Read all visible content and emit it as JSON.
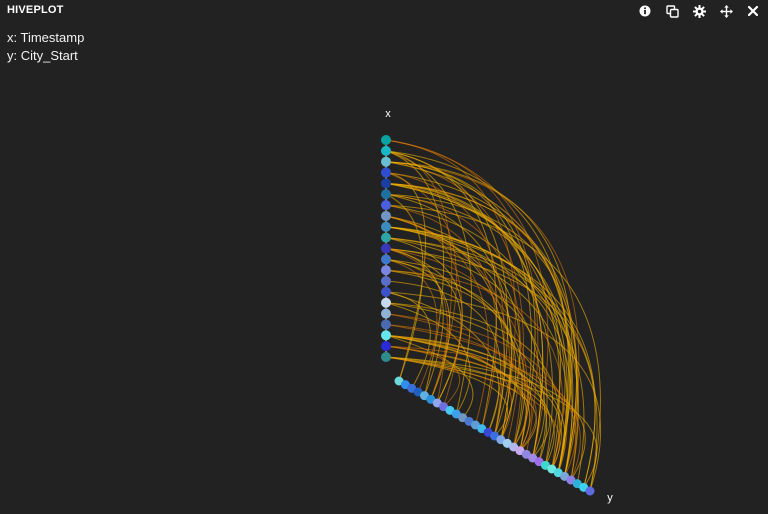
{
  "panel": {
    "title": "HIVEPLOT"
  },
  "toolbar": {
    "icons": [
      "info-icon",
      "copy-icon",
      "gear-icon",
      "move-icon",
      "close-icon"
    ]
  },
  "encoding": {
    "x_line": "x: Timestamp",
    "y_line": "y: City_Start"
  },
  "colors": {
    "background": "#222222",
    "edge": "#f0b000",
    "edge_dark": "#e07a00"
  },
  "chart_data": {
    "type": "hiveplot",
    "axes": [
      {
        "name": "x",
        "label": "x"
      },
      {
        "name": "y",
        "label": "y"
      }
    ],
    "x_nodes": [
      "#0aa2a2",
      "#19b6c6",
      "#6bbcd0",
      "#2f4dd0",
      "#1b3fa0",
      "#1f6fa0",
      "#4a5ee0",
      "#6f96c4",
      "#3b8bbf",
      "#2ea5a5",
      "#3a38b8",
      "#3f78c8",
      "#7a86e0",
      "#5a6ec8",
      "#3b52c8",
      "#c8d8ee",
      "#8fb2d6",
      "#4a6bb0",
      "#66e6f0",
      "#2a2ad8",
      "#2f8a8a"
    ],
    "y_nodes": [
      "#6fd8d8",
      "#2f8ef0",
      "#3a6ed8",
      "#1f5fbf",
      "#5fb0e0",
      "#2a90d8",
      "#8fa6ef",
      "#6f6fe0",
      "#48c8f0",
      "#3aa0f0",
      "#6f96c4",
      "#4a78d0",
      "#5e9ed8",
      "#3fb8ea",
      "#3a46d8",
      "#3b6fe0",
      "#7fa8e8",
      "#9fd0f0",
      "#b0b8ef",
      "#c8a8ef",
      "#8f86e0",
      "#a08ae8",
      "#9f6ee8",
      "#3fd8d0",
      "#6fe8e0",
      "#4fd8e0",
      "#7aa6d8",
      "#8f7fe8",
      "#2fb0d8",
      "#3fd0f0",
      "#5f6ae0"
    ],
    "edges": 90
  }
}
